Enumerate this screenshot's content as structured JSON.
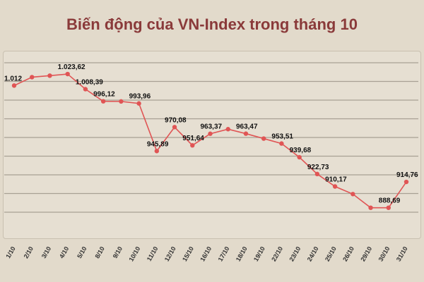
{
  "title": "Biến động của VN-Index trong tháng 10",
  "chart_data": {
    "type": "line",
    "title": "Biến động của VN-Index trong tháng 10",
    "categories": [
      "1/10",
      "2/10",
      "3/10",
      "4/10",
      "5/10",
      "8/10",
      "9/10",
      "10/10",
      "11/10",
      "12/10",
      "15/10",
      "16/10",
      "17/10",
      "18/10",
      "19/10",
      "22/10",
      "23/10",
      "24/10",
      "25/10",
      "26/10",
      "29/10",
      "30/10",
      "31/10"
    ],
    "series": [
      {
        "values": [
          1012.0,
          1020.5,
          1022.0,
          1023.62,
          1008.39,
          996.12,
          996.0,
          993.96,
          945.89,
          970.08,
          951.64,
          963.37,
          968.0,
          963.47,
          958.5,
          953.51,
          939.68,
          922.73,
          910.17,
          902.5,
          888.69,
          888.69,
          914.76
        ]
      }
    ],
    "data_labels": [
      {
        "index": 0,
        "text": "1.012"
      },
      {
        "index": 3,
        "text": "1.023,62"
      },
      {
        "index": 4,
        "text": "1.008,39"
      },
      {
        "index": 5,
        "text": "996,12"
      },
      {
        "index": 7,
        "text": "993,96"
      },
      {
        "index": 8,
        "text": "945,89"
      },
      {
        "index": 9,
        "text": "970,08"
      },
      {
        "index": 10,
        "text": "951,64"
      },
      {
        "index": 11,
        "text": "963,37"
      },
      {
        "index": 13,
        "text": "963,47"
      },
      {
        "index": 15,
        "text": "953,51"
      },
      {
        "index": 16,
        "text": "939,68"
      },
      {
        "index": 17,
        "text": "922,73"
      },
      {
        "index": 18,
        "text": "910,17"
      },
      {
        "index": 21,
        "text": "888,69"
      },
      {
        "index": 22,
        "text": "914,76"
      }
    ],
    "ylim": [
      860,
      1045
    ],
    "grid": true,
    "colors": {
      "line": "#e05555",
      "point": "#e05555",
      "grid": "#a8a094",
      "background": "#e2dacb",
      "title": "#8a3a3a"
    }
  }
}
